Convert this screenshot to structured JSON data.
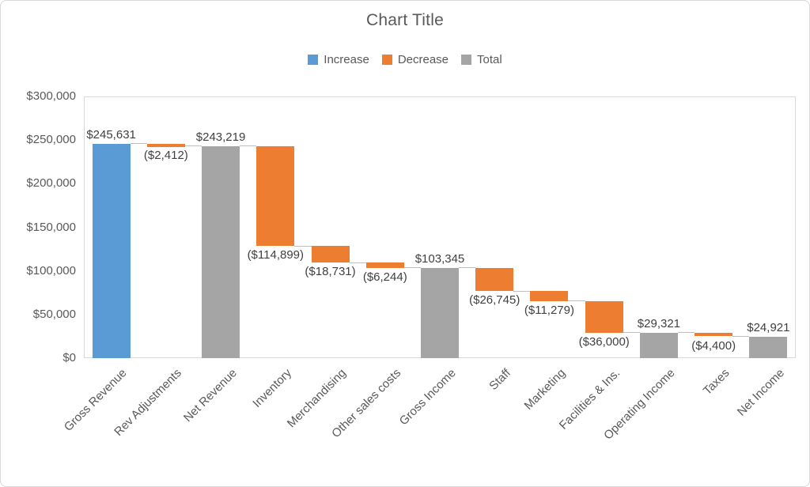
{
  "window": {
    "background": "#FFFFFF",
    "border_color": "#D9D9D9"
  },
  "chart": {
    "title": "Chart Title",
    "legend": [
      {
        "label": "Increase",
        "color": "#5B9BD5"
      },
      {
        "label": "Decrease",
        "color": "#ED7D31"
      },
      {
        "label": "Total",
        "color": "#A5A5A5"
      }
    ],
    "colors": {
      "increase": "#5B9BD5",
      "decrease": "#ED7D31",
      "total": "#A5A5A5",
      "gridline": "#D9D9D9",
      "axis_text": "#595959",
      "data_label": "#404040",
      "connector": "#BFBFBF"
    }
  },
  "chart_data": {
    "type": "bar",
    "subtype": "waterfall",
    "title": "Chart Title",
    "legend_position": "top",
    "legend_entries": [
      "Increase",
      "Decrease",
      "Total"
    ],
    "grid": true,
    "xlabel": "",
    "ylabel": "",
    "ylim": [
      0,
      300000
    ],
    "ytick_step": 50000,
    "ytick_labels": [
      "$0",
      "$50,000",
      "$100,000",
      "$150,000",
      "$200,000",
      "$250,000",
      "$300,000"
    ],
    "categories": [
      "Gross Revenue",
      "Rev Adjustments",
      "Net Revenue",
      "Inventory",
      "Merchandising",
      "Other sales costs",
      "Gross Income",
      "Staff",
      "Marketing",
      "Facilities & Ins.",
      "Operating Income",
      "Taxes",
      "Net Income"
    ],
    "points": [
      {
        "category": "Gross Revenue",
        "kind": "increase",
        "delta": 245631,
        "start": 0,
        "end": 245631,
        "label": "$245,631"
      },
      {
        "category": "Rev Adjustments",
        "kind": "decrease",
        "delta": -2412,
        "start": 245631,
        "end": 243219,
        "label": "($2,412)"
      },
      {
        "category": "Net Revenue",
        "kind": "total",
        "delta": 243219,
        "start": 0,
        "end": 243219,
        "label": "$243,219"
      },
      {
        "category": "Inventory",
        "kind": "decrease",
        "delta": -114899,
        "start": 243219,
        "end": 128320,
        "label": "($114,899)"
      },
      {
        "category": "Merchandising",
        "kind": "decrease",
        "delta": -18731,
        "start": 128320,
        "end": 109589,
        "label": "($18,731)"
      },
      {
        "category": "Other sales costs",
        "kind": "decrease",
        "delta": -6244,
        "start": 109589,
        "end": 103345,
        "label": "($6,244)"
      },
      {
        "category": "Gross Income",
        "kind": "total",
        "delta": 103345,
        "start": 0,
        "end": 103345,
        "label": "$103,345"
      },
      {
        "category": "Staff",
        "kind": "decrease",
        "delta": -26745,
        "start": 103345,
        "end": 76600,
        "label": "($26,745)"
      },
      {
        "category": "Marketing",
        "kind": "decrease",
        "delta": -11279,
        "start": 76600,
        "end": 65321,
        "label": "($11,279)"
      },
      {
        "category": "Facilities & Ins.",
        "kind": "decrease",
        "delta": -36000,
        "start": 65321,
        "end": 29321,
        "label": "($36,000)"
      },
      {
        "category": "Operating Income",
        "kind": "total",
        "delta": 29321,
        "start": 0,
        "end": 29321,
        "label": "$29,321"
      },
      {
        "category": "Taxes",
        "kind": "decrease",
        "delta": -4400,
        "start": 29321,
        "end": 24921,
        "label": "($4,400)"
      },
      {
        "category": "Net Income",
        "kind": "total",
        "delta": 24921,
        "start": 0,
        "end": 24921,
        "label": "$24,921"
      }
    ]
  }
}
